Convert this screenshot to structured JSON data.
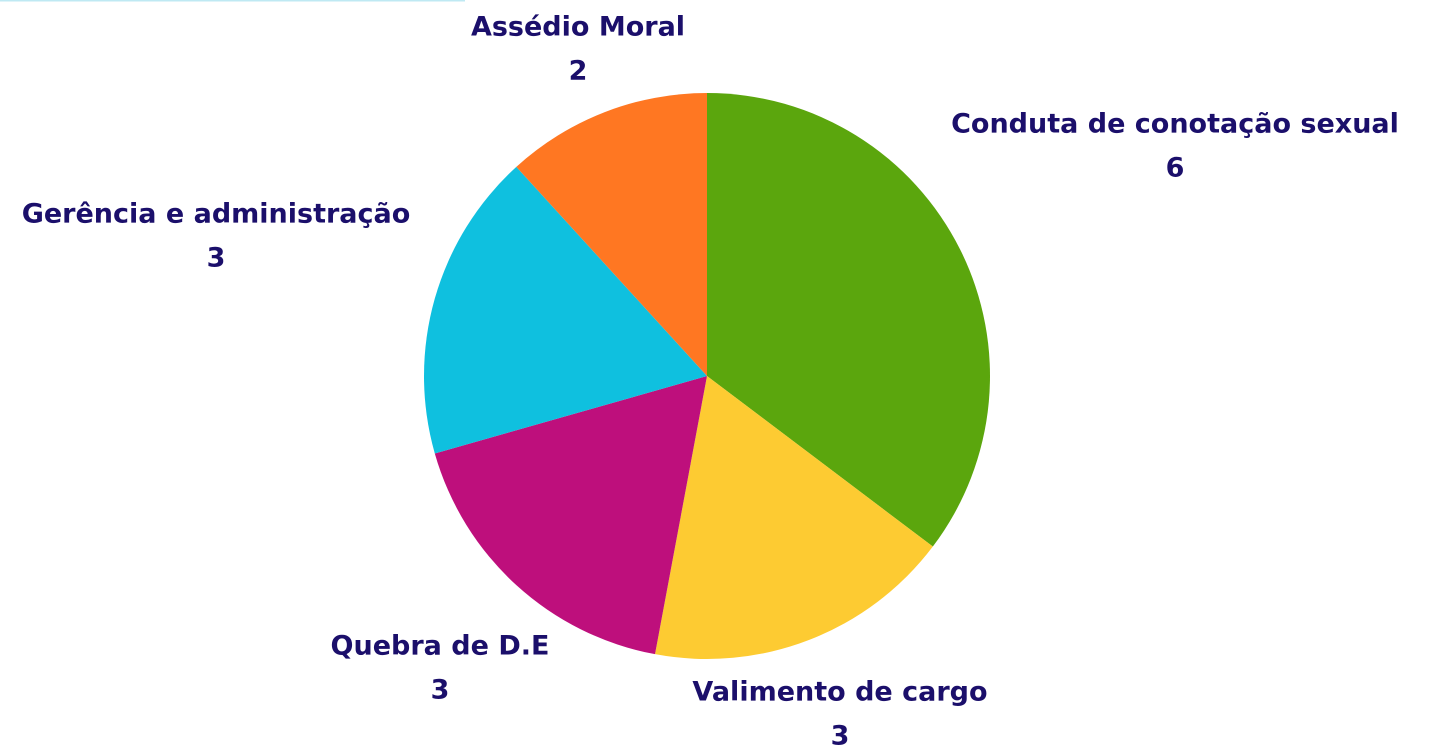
{
  "chart_data": {
    "type": "pie",
    "categories": [
      "Conduta de conotação sexual",
      "Valimento de cargo",
      "Quebra de D.E",
      "Gerência e administração",
      "Assédio Moral"
    ],
    "values": [
      6,
      3,
      3,
      3,
      2
    ],
    "colors": [
      "#5ba60d",
      "#fdcb32",
      "#be0f7c",
      "#0fc0df",
      "#ff7722"
    ]
  }
}
